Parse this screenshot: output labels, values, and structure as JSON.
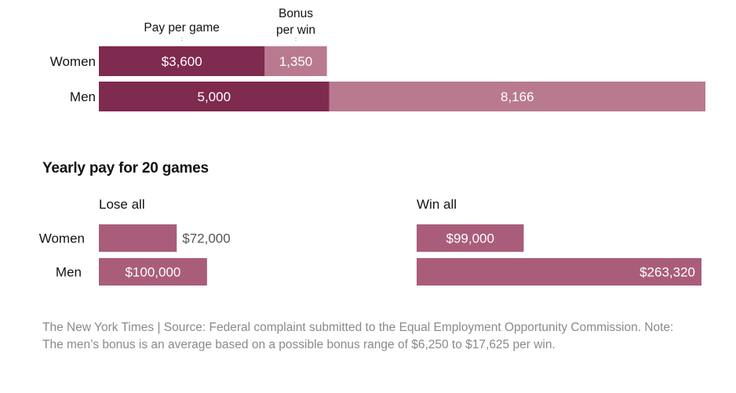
{
  "chart_data": [
    {
      "type": "bar",
      "stacked": true,
      "orientation": "horizontal",
      "categories": [
        "Women",
        "Men"
      ],
      "series": [
        {
          "name": "Pay per game",
          "values": [
            3600,
            5000
          ],
          "labels": [
            "$3,600",
            "5,000"
          ],
          "color": "#7f2a4f"
        },
        {
          "name": "Bonus per win",
          "values": [
            1350,
            8166
          ],
          "labels": [
            "1,350",
            "8,166"
          ],
          "color": "#b97a8f"
        }
      ]
    },
    {
      "type": "bar",
      "orientation": "horizontal",
      "title": "Yearly pay for 20 games",
      "categories": [
        "Women",
        "Men"
      ],
      "color": "#a95d7a",
      "panels": [
        {
          "name": "Lose all",
          "values": [
            72000,
            100000
          ],
          "labels": [
            "$72,000",
            "$100,000"
          ]
        },
        {
          "name": "Win all",
          "values": [
            99000,
            263320
          ],
          "labels": [
            "$99,000",
            "$263,320"
          ]
        }
      ]
    }
  ],
  "footer": {
    "text": "The New York Times | Source: Federal complaint submitted to the Equal Employment Opportunity Commission. Note: The men’s bonus is an average based on a possible bonus range of $6,250 to $17,625 per win."
  }
}
